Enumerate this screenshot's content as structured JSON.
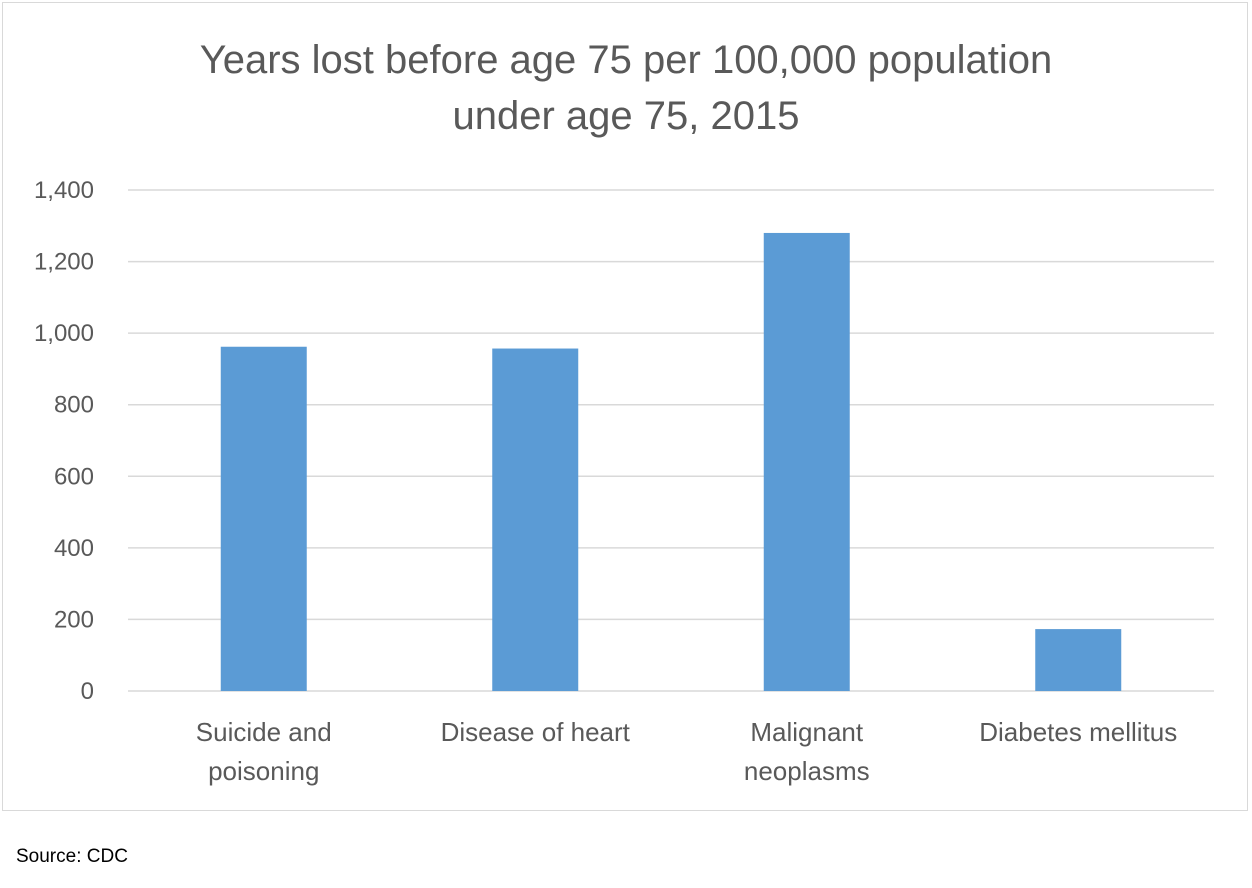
{
  "chart_data": {
    "type": "bar",
    "title_lines": [
      "Years lost before age 75 per 100,000 population",
      "under age 75, 2015"
    ],
    "categories": [
      [
        "Suicide and",
        "poisoning"
      ],
      [
        "Disease of heart"
      ],
      [
        "Malignant",
        "neoplasms"
      ],
      [
        "Diabetes mellitus"
      ]
    ],
    "values": [
      962,
      957,
      1280,
      173
    ],
    "ylim": [
      0,
      1400
    ],
    "yticks": [
      0,
      200,
      400,
      600,
      800,
      1000,
      1200,
      1400
    ],
    "ytick_labels": [
      "0",
      "200",
      "400",
      "600",
      "800",
      "1,000",
      "1,200",
      "1,400"
    ],
    "grid": true,
    "bar_color": "#5b9bd5",
    "grid_color": "#d9d9d9",
    "text_color": "#595959"
  },
  "source": "Source: CDC"
}
